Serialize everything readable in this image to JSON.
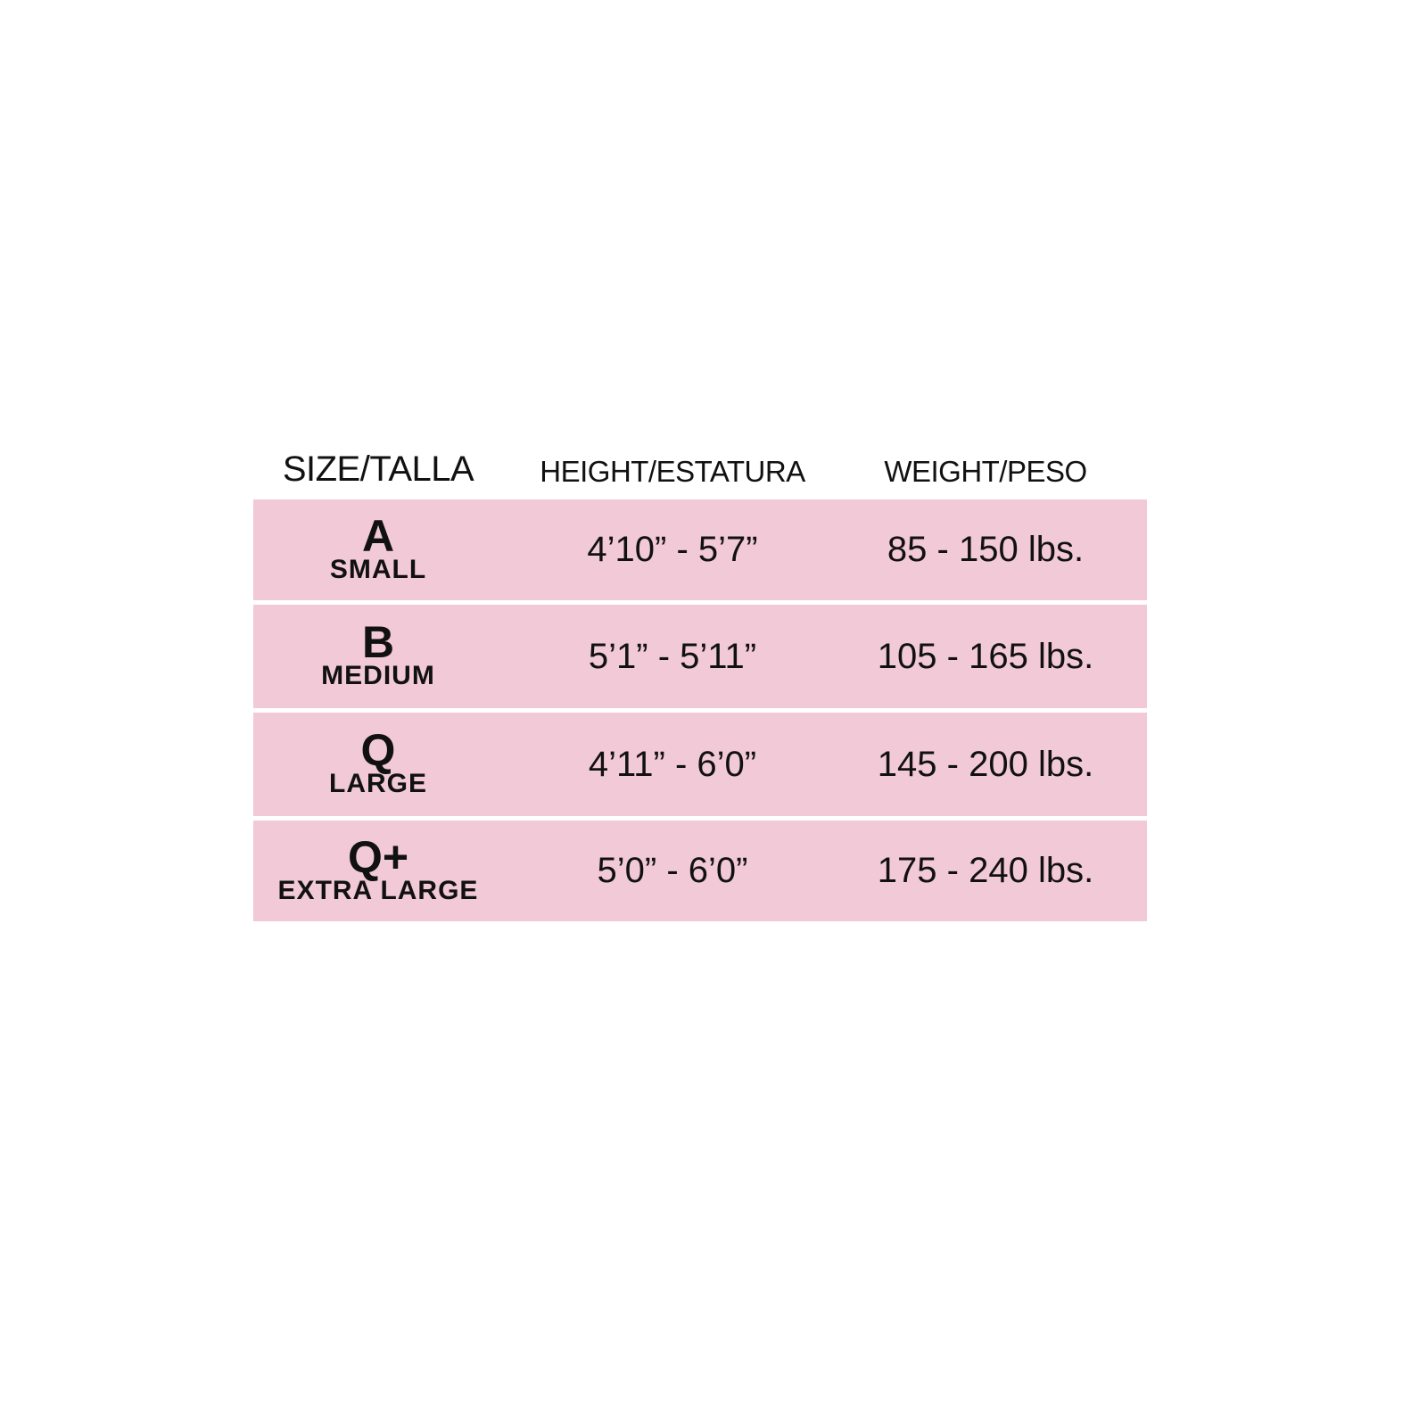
{
  "colors": {
    "row_background": "#f2c9d6",
    "text": "#111111"
  },
  "headers": [
    "SIZE/TALLA",
    "HEIGHT/ESTATURA",
    "WEIGHT/PESO"
  ],
  "rows": [
    {
      "code": "A",
      "name": "SMALL",
      "height": "4’10” - 5’7”",
      "weight": "85 - 150 lbs."
    },
    {
      "code": "B",
      "name": "MEDIUM",
      "height": "5’1” - 5’11”",
      "weight": "105 - 165 lbs."
    },
    {
      "code": "Q",
      "name": "LARGE",
      "height": "4’11” - 6’0”",
      "weight": "145 - 200 lbs."
    },
    {
      "code": "Q+",
      "name": "EXTRA LARGE",
      "height": "5’0” - 6’0”",
      "weight": "175 - 240 lbs."
    }
  ]
}
